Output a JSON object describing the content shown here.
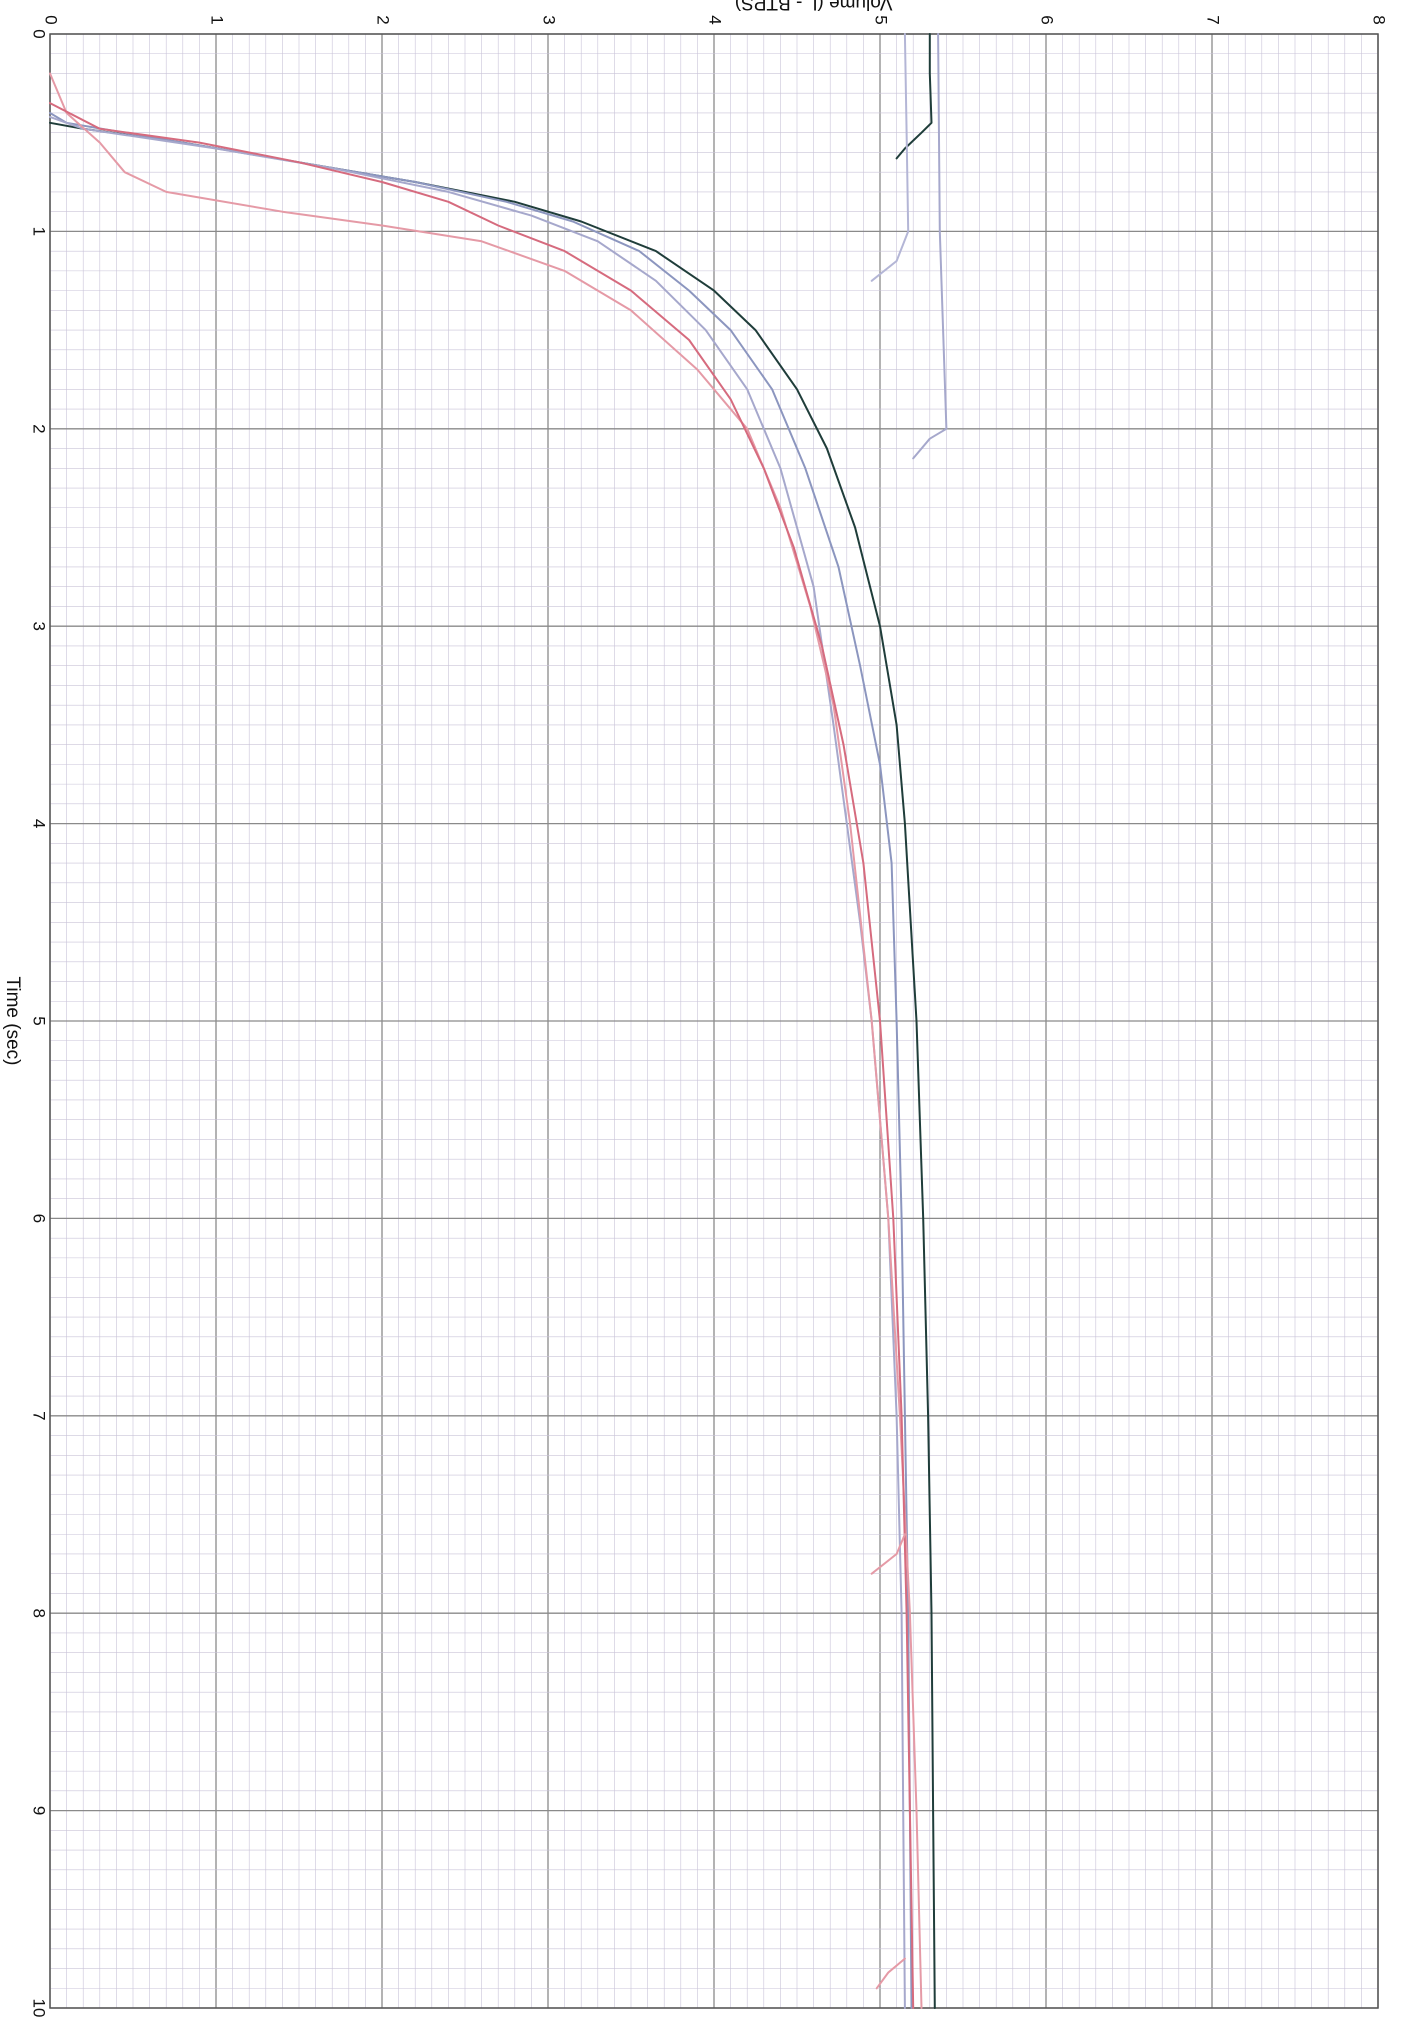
{
  "chart_data": {
    "type": "line",
    "orientation": "rotated-90-clockwise",
    "xlabel": "Time (sec)",
    "ylabel": "Volume (L - BTPS)",
    "xlim": [
      0,
      10
    ],
    "ylim": [
      0,
      8
    ],
    "x_ticks": [
      "0",
      "1",
      "2",
      "3",
      "4",
      "5",
      "6",
      "7",
      "8",
      "9",
      "10"
    ],
    "y_ticks": [
      "0",
      "1",
      "2",
      "3",
      "4",
      "5",
      "6",
      "7",
      "8"
    ],
    "grid": {
      "major_color": "#8a8a8a",
      "minor_color": "#c9c3d8",
      "minor_per_major_x": 10,
      "minor_per_major_y": 10
    },
    "series": [
      {
        "color": "#1f3d3a",
        "points": [
          [
            0.45,
            0.0
          ],
          [
            0.48,
            0.2
          ],
          [
            0.55,
            0.8
          ],
          [
            0.65,
            1.5
          ],
          [
            0.75,
            2.2
          ],
          [
            0.85,
            2.8
          ],
          [
            0.95,
            3.2
          ],
          [
            1.1,
            3.65
          ],
          [
            1.3,
            4.0
          ],
          [
            1.5,
            4.25
          ],
          [
            1.8,
            4.5
          ],
          [
            2.1,
            4.68
          ],
          [
            2.5,
            4.85
          ],
          [
            3.0,
            5.0
          ],
          [
            3.5,
            5.1
          ],
          [
            4.0,
            5.15
          ],
          [
            5.0,
            5.22
          ],
          [
            6.0,
            5.26
          ],
          [
            7.0,
            5.29
          ],
          [
            8.0,
            5.31
          ],
          [
            9.0,
            5.32
          ],
          [
            10.0,
            5.33
          ]
        ]
      },
      {
        "color": "#8c96bf",
        "points": [
          [
            0.4,
            0.0
          ],
          [
            0.45,
            0.1
          ],
          [
            0.55,
            0.8
          ],
          [
            0.65,
            1.5
          ],
          [
            0.75,
            2.2
          ],
          [
            0.85,
            2.75
          ],
          [
            0.95,
            3.15
          ],
          [
            1.1,
            3.55
          ],
          [
            1.3,
            3.85
          ],
          [
            1.5,
            4.1
          ],
          [
            1.8,
            4.35
          ],
          [
            2.2,
            4.55
          ],
          [
            2.7,
            4.75
          ],
          [
            3.2,
            4.88
          ],
          [
            3.7,
            5.0
          ],
          [
            4.2,
            5.07
          ],
          [
            5.0,
            5.1
          ],
          [
            6.0,
            5.13
          ],
          [
            7.0,
            5.15
          ],
          [
            8.0,
            5.17
          ],
          [
            9.0,
            5.18
          ],
          [
            10.0,
            5.19
          ]
        ]
      },
      {
        "color": "#a6a8cc",
        "points": [
          [
            0.42,
            0.0
          ],
          [
            0.48,
            0.2
          ],
          [
            0.58,
            1.0
          ],
          [
            0.68,
            1.7
          ],
          [
            0.8,
            2.4
          ],
          [
            0.92,
            2.9
          ],
          [
            1.05,
            3.3
          ],
          [
            1.25,
            3.65
          ],
          [
            1.5,
            3.95
          ],
          [
            1.8,
            4.2
          ],
          [
            2.2,
            4.4
          ],
          [
            2.8,
            4.6
          ],
          [
            3.5,
            4.72
          ],
          [
            4.0,
            4.8
          ],
          [
            4.5,
            4.88
          ],
          [
            5.0,
            4.95
          ],
          [
            6.0,
            5.05
          ],
          [
            7.0,
            5.1
          ],
          [
            8.0,
            5.13
          ],
          [
            9.0,
            5.14
          ],
          [
            10.0,
            5.15
          ]
        ]
      },
      {
        "color": "#e59aa6",
        "points": [
          [
            0.2,
            0.0
          ],
          [
            0.4,
            0.1
          ],
          [
            0.55,
            0.3
          ],
          [
            0.7,
            0.45
          ],
          [
            0.8,
            0.7
          ],
          [
            0.9,
            1.4
          ],
          [
            0.97,
            2.0
          ],
          [
            1.05,
            2.6
          ],
          [
            1.2,
            3.1
          ],
          [
            1.4,
            3.5
          ],
          [
            1.7,
            3.9
          ],
          [
            2.0,
            4.2
          ],
          [
            2.4,
            4.4
          ],
          [
            2.9,
            4.58
          ],
          [
            3.4,
            4.72
          ],
          [
            4.0,
            4.82
          ],
          [
            5.0,
            4.95
          ],
          [
            6.0,
            5.05
          ],
          [
            7.0,
            5.12
          ],
          [
            8.0,
            5.18
          ],
          [
            9.0,
            5.22
          ],
          [
            10.0,
            5.25
          ]
        ]
      },
      {
        "color": "#d66b7e",
        "points": [
          [
            0.35,
            0.0
          ],
          [
            0.48,
            0.3
          ],
          [
            0.55,
            0.9
          ],
          [
            0.65,
            1.5
          ],
          [
            0.75,
            2.0
          ],
          [
            0.85,
            2.4
          ],
          [
            0.97,
            2.7
          ],
          [
            1.1,
            3.1
          ],
          [
            1.3,
            3.5
          ],
          [
            1.55,
            3.85
          ],
          [
            1.85,
            4.1
          ],
          [
            2.2,
            4.3
          ],
          [
            2.6,
            4.48
          ],
          [
            3.1,
            4.65
          ],
          [
            3.6,
            4.78
          ],
          [
            4.2,
            4.9
          ],
          [
            5.0,
            5.0
          ],
          [
            6.0,
            5.08
          ],
          [
            7.0,
            5.13
          ],
          [
            8.0,
            5.16
          ],
          [
            9.0,
            5.18
          ],
          [
            10.0,
            5.2
          ]
        ]
      },
      {
        "color": "#a6a8cc",
        "points": [
          [
            0.0,
            5.35
          ],
          [
            1.0,
            5.36
          ],
          [
            1.5,
            5.38
          ],
          [
            2.0,
            5.4
          ],
          [
            2.05,
            5.3
          ],
          [
            2.15,
            5.2
          ]
        ]
      },
      {
        "color": "#1f3d3a",
        "points": [
          [
            0.0,
            5.3
          ],
          [
            0.2,
            5.3
          ],
          [
            0.45,
            5.31
          ],
          [
            0.5,
            5.25
          ],
          [
            0.58,
            5.15
          ],
          [
            0.63,
            5.1
          ]
        ]
      },
      {
        "color": "#b4b6d6",
        "points": [
          [
            0.0,
            5.15
          ],
          [
            0.5,
            5.16
          ],
          [
            1.0,
            5.17
          ],
          [
            1.15,
            5.1
          ],
          [
            1.25,
            4.95
          ]
        ]
      },
      {
        "color": "#e59aa6",
        "points": [
          [
            7.6,
            5.15
          ],
          [
            7.7,
            5.1
          ],
          [
            7.8,
            4.95
          ]
        ]
      },
      {
        "color": "#e59aa6",
        "points": [
          [
            9.75,
            5.15
          ],
          [
            9.82,
            5.05
          ],
          [
            9.9,
            4.98
          ]
        ]
      }
    ]
  }
}
